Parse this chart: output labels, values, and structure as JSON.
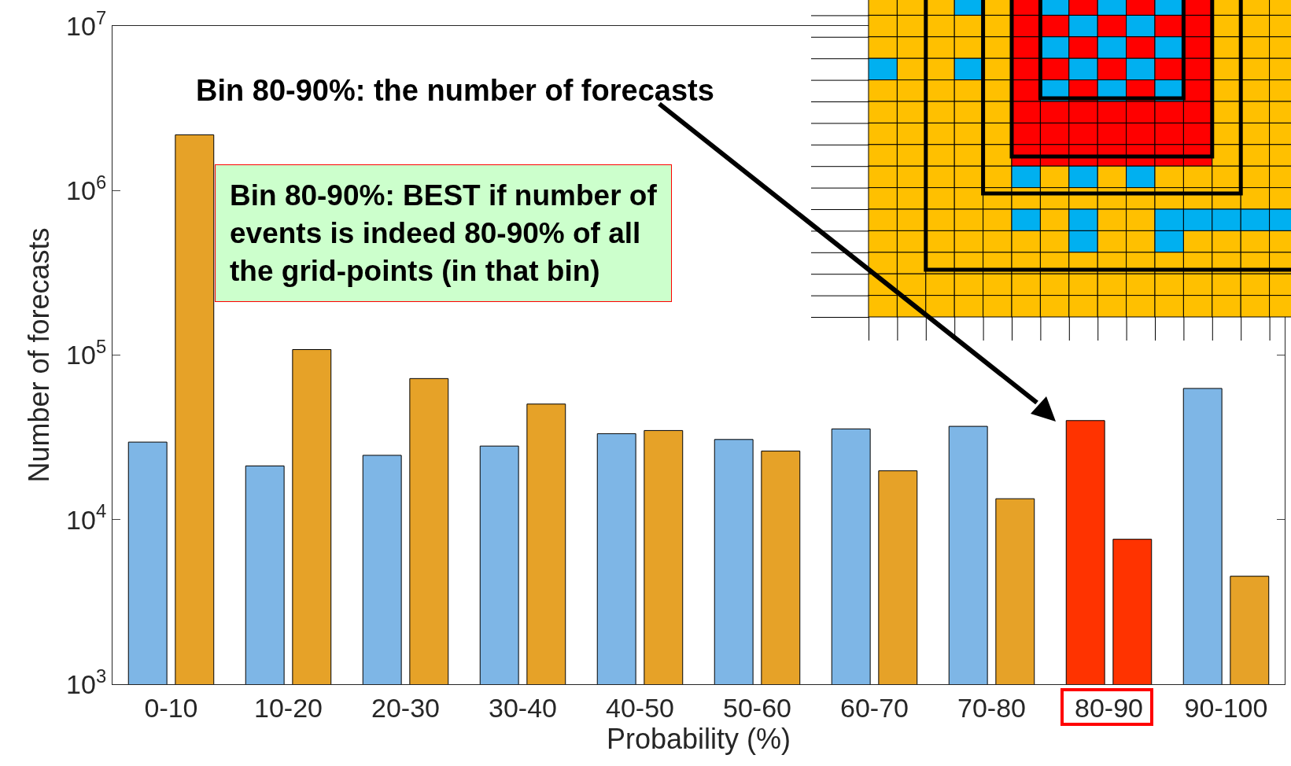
{
  "chart_data": {
    "type": "bar",
    "ylabel": "Number of forecasts",
    "xlabel": "Probability (%)",
    "categories": [
      "0-10",
      "10-20",
      "20-30",
      "30-40",
      "40-50",
      "50-60",
      "60-70",
      "70-80",
      "80-90",
      "90-100"
    ],
    "series": [
      {
        "color": "#7eb6e6",
        "colors": [
          "#7eb6e6",
          "#7eb6e6",
          "#7eb6e6",
          "#7eb6e6",
          "#7eb6e6",
          "#7eb6e6",
          "#7eb6e6",
          "#7eb6e6",
          "#ff3300",
          "#7eb6e6"
        ],
        "values": [
          29600,
          21200,
          24600,
          28000,
          33300,
          30700,
          35600,
          36900,
          40000,
          62700
        ]
      },
      {
        "color": "#e6a228",
        "colors": [
          "#e6a228",
          "#e6a228",
          "#e6a228",
          "#e6a228",
          "#e6a228",
          "#e6a228",
          "#e6a228",
          "#e6a228",
          "#ff3300",
          "#e6a228"
        ],
        "values": [
          2180000,
          108000,
          72000,
          50400,
          34800,
          26100,
          19800,
          13400,
          7600,
          4530
        ]
      }
    ],
    "log": "y",
    "ylim": [
      1000,
      10000000
    ],
    "yticks": [
      {
        "value": 1000,
        "label": "10$^{3}$"
      },
      {
        "value": 10000,
        "label": "10$^{4}$"
      },
      {
        "value": 100000,
        "label": "10$^{5}$"
      },
      {
        "value": 1000000,
        "label": "10$^{6}$"
      },
      {
        "value": 10000000,
        "label": "10$^{7}$"
      }
    ],
    "grid": false,
    "annotations": [
      "Bin 80-90%: the number of forecasts",
      "Bin 80-90%: BEST if number of events is indeed 80-90% of all the grid-points (in that bin)"
    ]
  }
}
